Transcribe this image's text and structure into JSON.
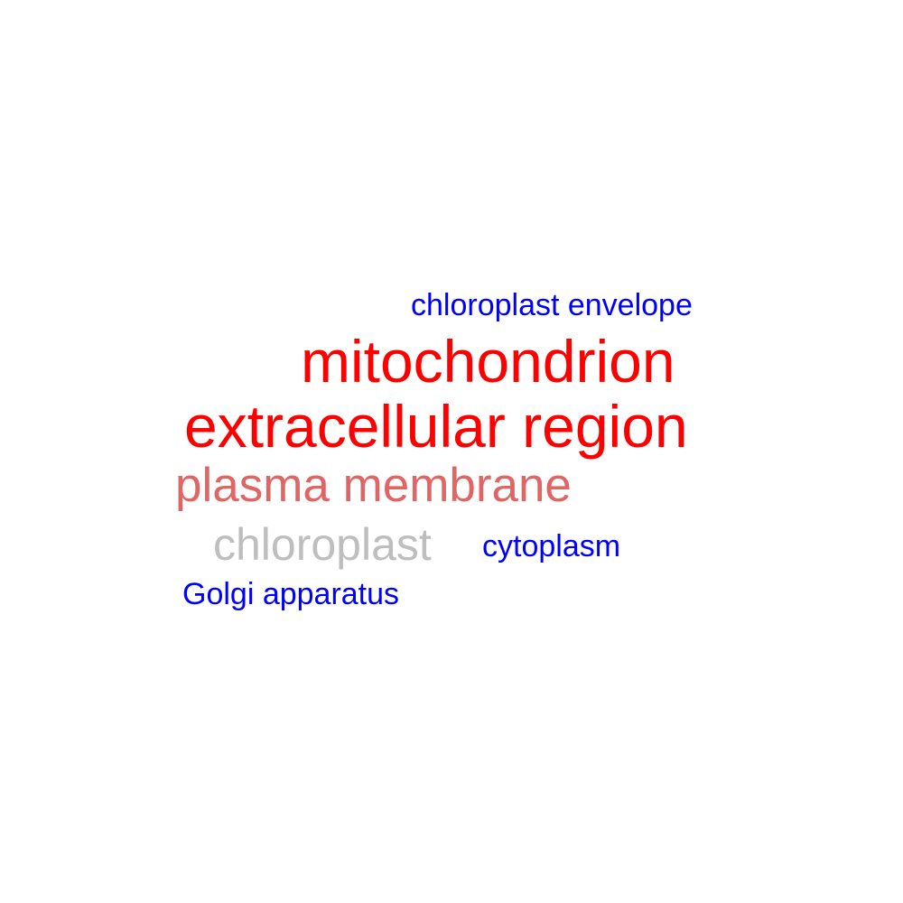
{
  "words": [
    {
      "text": "chloroplast envelope",
      "color": "#0000ff"
    },
    {
      "text": "mitochondrion",
      "color": "#ff0000"
    },
    {
      "text": "extracellular region",
      "color": "#ff0000"
    },
    {
      "text": "plasma membrane",
      "color": "#e06666"
    },
    {
      "text": "chloroplast",
      "color": "#bebebe"
    },
    {
      "text": "cytoplasm",
      "color": "#0000ff"
    },
    {
      "text": "Golgi apparatus",
      "color": "#0000ff"
    }
  ]
}
